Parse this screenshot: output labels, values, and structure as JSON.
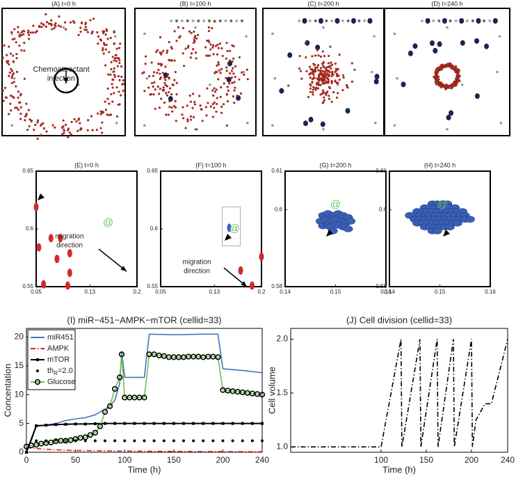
{
  "chart_data": [
    {
      "type": "cells-overview",
      "title": "(A) t=0 h",
      "annotation": [
        "Chemoattractant",
        "injection"
      ]
    },
    {
      "type": "cells-overview",
      "title": "(B) t=100 h"
    },
    {
      "type": "cells-overview",
      "title": "(C) t=200 h"
    },
    {
      "type": "cells-overview",
      "title": "(D) t=240 h"
    },
    {
      "type": "cells-zoom",
      "title": "(E) t=0 h",
      "xlim": [
        0.05,
        0.2
      ],
      "ylim": [
        0.55,
        0.65
      ],
      "xticks": [
        0.05,
        0.13,
        0.2
      ],
      "yticks": [
        0.55,
        0.6,
        0.65
      ],
      "annotation": [
        "migration",
        "direction"
      ],
      "cells": {
        "color": "#d42a2a",
        "x": [
          0.05,
          0.054,
          0.072,
          0.086,
          0.081,
          0.1,
          0.1,
          0.061,
          0.097
        ],
        "y": [
          0.619,
          0.584,
          0.592,
          0.592,
          0.574,
          0.579,
          0.562,
          0.552,
          0.551
        ]
      },
      "chemoattractant": {
        "label": "@",
        "color": "#6cc06c",
        "x": 0.157,
        "y": 0.605
      }
    },
    {
      "type": "cells-zoom",
      "title": "(F) t=100 h",
      "xlim": [
        0.05,
        0.2
      ],
      "ylim": [
        0.55,
        0.65
      ],
      "xticks": [
        0.05,
        0.13,
        0.2
      ],
      "yticks": [
        0.55,
        0.6,
        0.65
      ],
      "annotation": [
        "migration",
        "direction"
      ],
      "cells": {
        "color": "#d42a2a",
        "x": [
          0.169,
          0.2,
          0.186
        ],
        "y": [
          0.564,
          0.576,
          0.551
        ]
      },
      "migrating_cell": {
        "color": "#3a5fb8",
        "x": 0.152,
        "y": 0.601
      },
      "chemoattractant": {
        "label": "@",
        "color": "#6cc06c",
        "x": 0.16,
        "y": 0.6
      }
    },
    {
      "type": "cells-zoom",
      "title": "(G) t=200 h",
      "xlim": [
        0.14,
        0.16
      ],
      "ylim": [
        0.58,
        0.61
      ],
      "xticks": [
        0.14,
        0.15,
        0.16
      ],
      "yticks": [
        0.58,
        0.6,
        0.61
      ],
      "cells": {
        "color": "#3a5fb8",
        "x": [
          0.1475,
          0.1485,
          0.1495,
          0.1505,
          0.1515,
          0.1525,
          0.147,
          0.148,
          0.149,
          0.15,
          0.151,
          0.152,
          0.153,
          0.1475,
          0.1485,
          0.1505,
          0.1515,
          0.1525,
          0.149,
          0.1495
        ],
        "y": [
          0.5985,
          0.599,
          0.5985,
          0.599,
          0.5985,
          0.598,
          0.597,
          0.5975,
          0.597,
          0.5975,
          0.597,
          0.5965,
          0.597,
          0.5958,
          0.596,
          0.596,
          0.5955,
          0.595,
          0.5955,
          0.5945
        ]
      },
      "chemoattractant": {
        "label": "@",
        "color": "#6cc06c",
        "x": 0.15,
        "y": 0.6012
      }
    },
    {
      "type": "cells-zoom",
      "title": "(H) t=240 h",
      "xlim": [
        0.14,
        0.16
      ],
      "ylim": [
        0.58,
        0.61
      ],
      "xticks": [
        0.14,
        0.15,
        0.16
      ],
      "yticks": [
        0.58,
        0.6,
        0.61
      ],
      "chemoattractant": {
        "label": "@",
        "color": "#6cc06c",
        "x": 0.1505,
        "y": 0.6012
      },
      "cells": {
        "color": "#3a5fb8",
        "x": [
          0.1485,
          0.1495,
          0.1505,
          0.1515,
          0.147,
          0.148,
          0.149,
          0.15,
          0.151,
          0.152,
          0.153,
          0.1455,
          0.1465,
          0.1475,
          0.1485,
          0.1495,
          0.1505,
          0.1515,
          0.1525,
          0.1535,
          0.1545,
          0.144,
          0.145,
          0.146,
          0.147,
          0.148,
          0.149,
          0.15,
          0.151,
          0.152,
          0.153,
          0.154,
          0.155,
          0.145,
          0.146,
          0.147,
          0.148,
          0.149,
          0.15,
          0.151,
          0.152,
          0.153,
          0.154,
          0.155,
          0.156,
          0.1455,
          0.1465,
          0.1475,
          0.1485,
          0.1495,
          0.1505,
          0.1515,
          0.1525,
          0.1535,
          0.147,
          0.148,
          0.149,
          0.15,
          0.151,
          0.152,
          0.1485,
          0.1495
        ],
        "y": [
          0.6015,
          0.6015,
          0.6015,
          0.6015,
          0.6005,
          0.6005,
          0.6005,
          0.6005,
          0.6005,
          0.6005,
          0.6005,
          0.5995,
          0.5995,
          0.5995,
          0.5995,
          0.5995,
          0.5995,
          0.5995,
          0.5995,
          0.5995,
          0.5995,
          0.5985,
          0.5985,
          0.5985,
          0.5985,
          0.5985,
          0.5985,
          0.5985,
          0.5985,
          0.5985,
          0.5985,
          0.5985,
          0.5985,
          0.5975,
          0.5975,
          0.5975,
          0.5975,
          0.5975,
          0.5975,
          0.5975,
          0.5975,
          0.5975,
          0.5975,
          0.5975,
          0.5975,
          0.5965,
          0.5965,
          0.5965,
          0.5965,
          0.5965,
          0.5965,
          0.5965,
          0.5965,
          0.5965,
          0.5955,
          0.5955,
          0.5955,
          0.5955,
          0.5955,
          0.5955,
          0.5945,
          0.5945
        ]
      }
    },
    {
      "type": "line",
      "title": "(I) miR−451−AMPK−mTOR (cellid=33)",
      "xlabel": "Time (h)",
      "ylabel": "Concentation",
      "xlim": [
        0,
        240
      ],
      "ylim": [
        0,
        21.5
      ],
      "xticks": [
        0,
        50,
        100,
        150,
        200,
        240
      ],
      "yticks": [
        0,
        5,
        10,
        15,
        20
      ],
      "legend": "upper left",
      "series": [
        {
          "name": "miR451",
          "color": "#4a6fc0",
          "dash": "solid",
          "marker": "none",
          "x": [
            0,
            5,
            10,
            20,
            30,
            40,
            50,
            60,
            70,
            75,
            80,
            85,
            90,
            95,
            97,
            100,
            110,
            120,
            125,
            150,
            180,
            195,
            200,
            220,
            240
          ],
          "y": [
            0.5,
            2,
            4.5,
            4.7,
            5,
            5.5,
            5.8,
            6,
            6.5,
            7,
            7.5,
            8,
            9,
            12,
            17.5,
            13,
            13,
            13,
            20.5,
            20.4,
            20.5,
            20.5,
            14.5,
            14.2,
            13.8
          ]
        },
        {
          "name": "AMPK",
          "color": "#e02020",
          "dash": "dashdot",
          "marker": "none",
          "x": [
            0,
            20,
            50,
            100,
            150,
            200,
            240
          ],
          "y": [
            0.8,
            0.5,
            0.3,
            0.2,
            0.15,
            0.12,
            0.1
          ]
        },
        {
          "name": "mTOR",
          "color": "#000000",
          "dash": "solid",
          "marker": "square",
          "x": [
            0,
            10,
            20,
            30,
            40,
            50,
            60,
            70,
            80,
            90,
            100,
            110,
            120,
            130,
            140,
            150,
            160,
            170,
            180,
            190,
            200,
            210,
            220,
            230,
            240
          ],
          "y": [
            0,
            4.6,
            4.7,
            4.8,
            4.85,
            4.9,
            4.9,
            4.95,
            5,
            5,
            5,
            5,
            5,
            5,
            5,
            5,
            5,
            5,
            5,
            5,
            5,
            5,
            5,
            5,
            5
          ]
        },
        {
          "name": "th",
          "name_subscript": "R",
          "name_suffix": "=2.0",
          "color": "#000000",
          "dash": "none",
          "marker": "dot",
          "x": [
            10,
            20,
            30,
            40,
            50,
            60,
            70,
            80,
            90,
            100,
            110,
            120,
            130,
            140,
            150,
            160,
            170,
            180,
            190,
            200,
            210,
            220,
            230,
            240
          ],
          "y": [
            2,
            2,
            2,
            2,
            2,
            2,
            2,
            2,
            2,
            2,
            2,
            2,
            2,
            2,
            2,
            2,
            2,
            2,
            2,
            2,
            2,
            2,
            2,
            2
          ]
        },
        {
          "name": "Glucose",
          "color": "#6cc04a",
          "dash": "solid",
          "marker": "circle-open",
          "x": [
            0,
            5,
            10,
            15,
            20,
            25,
            30,
            35,
            40,
            45,
            50,
            55,
            60,
            65,
            70,
            75,
            80,
            85,
            90,
            95,
            97,
            100,
            105,
            110,
            115,
            120,
            125,
            130,
            135,
            140,
            145,
            150,
            155,
            160,
            165,
            170,
            175,
            180,
            185,
            190,
            195,
            200,
            205,
            210,
            215,
            220,
            225,
            230,
            235,
            240
          ],
          "y": [
            1,
            1.2,
            1.3,
            1.5,
            1.6,
            1.7,
            1.9,
            2,
            2,
            2.1,
            2.3,
            2.5,
            2.6,
            3,
            3.4,
            4.5,
            7,
            8,
            11,
            13,
            17,
            9.5,
            9.5,
            9.5,
            9.5,
            9.5,
            17,
            17,
            16.8,
            16.7,
            16.5,
            16.5,
            16.5,
            16.5,
            16.6,
            16.6,
            16.6,
            16.5,
            16.6,
            16.6,
            16.5,
            10.8,
            10.7,
            10.6,
            10.5,
            10.4,
            10.3,
            10.2,
            10.1,
            10
          ]
        }
      ]
    },
    {
      "type": "line",
      "title": "(J) Cell division (cellid=33)",
      "xlabel": "Time (h)",
      "ylabel": "Cell volume",
      "xlim": [
        0,
        240
      ],
      "ylim": [
        0.95,
        2.1
      ],
      "xticks": [
        100,
        150,
        200,
        240
      ],
      "yticks": [
        {
          "value": 1,
          "label": "1.0"
        },
        {
          "value": 1.5,
          "label": "1.5"
        },
        {
          "value": 2,
          "label": "2.0"
        }
      ],
      "series": [
        {
          "color": "#000000",
          "dash": "dashdot",
          "marker": "none",
          "x": [
            0,
            100,
            122,
            123,
            143,
            144,
            162,
            163,
            180,
            181,
            200,
            201,
            205,
            215,
            222,
            240
          ],
          "y": [
            1,
            1,
            2,
            1,
            2,
            1,
            2,
            1,
            2,
            1,
            2,
            1,
            1.25,
            1.4,
            1.4,
            2
          ]
        }
      ]
    }
  ]
}
